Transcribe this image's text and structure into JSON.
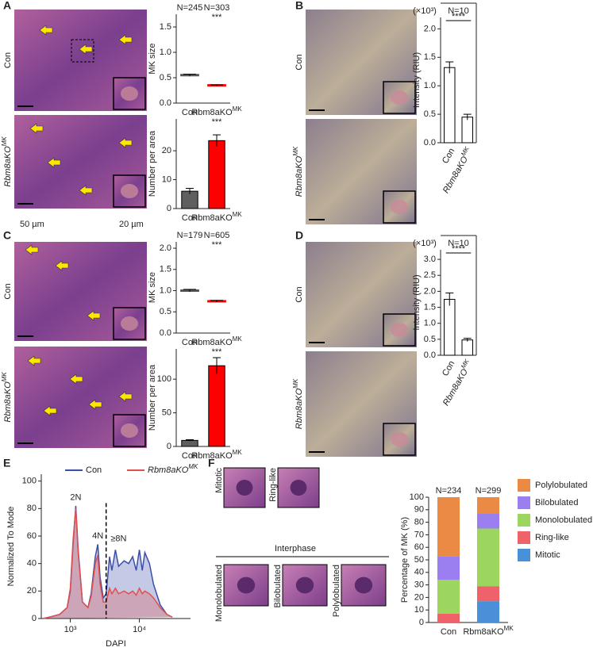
{
  "figure": {
    "panel_letters": [
      "A",
      "B",
      "C",
      "D",
      "E",
      "F"
    ],
    "row_labels": [
      "Con",
      "Rbm8aKO"
    ],
    "row_label_sup": "MK",
    "scale_labels": [
      "50 µm",
      "20 µm"
    ],
    "f_images": {
      "top": [
        "Mitotic",
        "Ring-like"
      ],
      "group": "Interphase",
      "bottom": [
        "Monolobulated",
        "Bilobulated",
        "Polylobulated"
      ]
    }
  },
  "chart_data": [
    {
      "type": "dot",
      "y_label": "MK size",
      "categories": [
        "Con",
        "Rbm8aKO"
      ],
      "category_superscripts": {
        "1": "MK"
      },
      "values": [
        0.55,
        0.35
      ],
      "errors": [
        0.02,
        0.01
      ],
      "colors": [
        "#555555",
        "#ff0000"
      ],
      "top_labels": [
        "N=245",
        "N=303"
      ],
      "significance": "***",
      "ylim": [
        0,
        1.75
      ],
      "yticks": [
        {
          "value": 0,
          "label": "0.0"
        },
        {
          "value": 0.5,
          "label": "0.5"
        },
        {
          "value": 1,
          "label": "1.0"
        },
        {
          "value": 1.5,
          "label": "1.5"
        }
      ]
    },
    {
      "type": "bar",
      "y_label": "Number per area",
      "categories": [
        "Con",
        "Rbm8aKO"
      ],
      "category_superscripts": {
        "1": "MK"
      },
      "values": [
        6,
        23.5
      ],
      "errors": [
        1,
        2
      ],
      "colors": [
        "#5f5f5f",
        "#ff0000"
      ],
      "significance": "***",
      "ylim": [
        0,
        31
      ],
      "yticks": [
        0,
        10,
        20
      ]
    },
    {
      "type": "bar",
      "y_label": "Intensity (RIU)",
      "unit_note": "(×10³)",
      "top_label": "N=10",
      "significance": "****",
      "bracket": true,
      "categories": [
        "Con",
        "Rbm8aKO"
      ],
      "category_superscripts": {
        "1": "MK"
      },
      "rotate_categories": true,
      "values": [
        1.32,
        0.45
      ],
      "errors": [
        0.1,
        0.05
      ],
      "colors": [
        "#ffffff",
        "#ffffff"
      ],
      "ylim": [
        0,
        2.2
      ],
      "yticks": [
        {
          "value": 0,
          "label": "0.0"
        },
        {
          "value": 0.5,
          "label": "0.5"
        },
        {
          "value": 1,
          "label": "1.0"
        },
        {
          "value": 1.5,
          "label": "1.5"
        },
        {
          "value": 2,
          "label": "2.0"
        }
      ]
    },
    {
      "type": "dot",
      "y_label": "MK size",
      "categories": [
        "Con",
        "Rbm8aKO"
      ],
      "category_superscripts": {
        "1": "MK"
      },
      "values": [
        1.0,
        0.75
      ],
      "errors": [
        0.03,
        0.02
      ],
      "colors": [
        "#555555",
        "#ff0000"
      ],
      "top_labels": [
        "N=179",
        "N=605"
      ],
      "significance": "***",
      "ylim": [
        0,
        2.15
      ],
      "yticks": [
        {
          "value": 0,
          "label": "0.0"
        },
        {
          "value": 0.5,
          "label": "0.5"
        },
        {
          "value": 1,
          "label": "1.0"
        },
        {
          "value": 1.5,
          "label": "1.5"
        },
        {
          "value": 2,
          "label": "2.0"
        }
      ]
    },
    {
      "type": "bar",
      "y_label": "Number per area",
      "categories": [
        "Con",
        "Rbm8aKO"
      ],
      "category_superscripts": {
        "1": "MK"
      },
      "values": [
        9,
        120
      ],
      "errors": [
        1,
        12
      ],
      "colors": [
        "#5f5f5f",
        "#ff0000"
      ],
      "significance": "***",
      "ylim": [
        0,
        145
      ],
      "yticks": [
        0,
        50,
        100
      ]
    },
    {
      "type": "bar",
      "y_label": "Intensity (RIU)",
      "unit_note": "(×10³)",
      "top_label": "N=10",
      "significance": "****",
      "bracket": true,
      "categories": [
        "Con",
        "Rbm8aKO"
      ],
      "category_superscripts": {
        "1": "MK"
      },
      "rotate_categories": true,
      "values": [
        1.75,
        0.48
      ],
      "errors": [
        0.2,
        0.05
      ],
      "colors": [
        "#ffffff",
        "#ffffff"
      ],
      "ylim": [
        0,
        3.3
      ],
      "yticks": [
        {
          "value": 0,
          "label": "0.0"
        },
        {
          "value": 0.5,
          "label": "0.5"
        },
        {
          "value": 1,
          "label": "1.0"
        },
        {
          "value": 1.5,
          "label": "1.5"
        },
        {
          "value": 2,
          "label": "2.0"
        },
        {
          "value": 2.5,
          "label": "2.5"
        },
        {
          "value": 3,
          "label": "3.0"
        }
      ]
    },
    {
      "type": "line",
      "x_label": "DAPI",
      "y_label": "Normalized To Mode",
      "log_x": true,
      "x": [
        400,
        500,
        700,
        900,
        1000,
        1100,
        1200,
        1300,
        1500,
        1800,
        2000,
        2300,
        2500,
        2700,
        3000,
        3300,
        3700,
        4000,
        4500,
        5000,
        6000,
        7000,
        8000,
        9000,
        10000,
        11000,
        12000,
        14000,
        16000,
        20000,
        25000,
        30000
      ],
      "series": [
        {
          "name": "Con",
          "color": "#3a4fa8",
          "values": [
            0,
            1,
            3,
            8,
            20,
            55,
            82,
            50,
            12,
            8,
            18,
            45,
            54,
            30,
            15,
            18,
            45,
            35,
            50,
            38,
            42,
            40,
            45,
            35,
            50,
            35,
            48,
            40,
            25,
            10,
            3,
            1
          ]
        },
        {
          "name": "Rbm8aKO",
          "sup": "MK",
          "color": "#e0504f",
          "values": [
            0,
            1,
            3,
            8,
            22,
            58,
            80,
            48,
            12,
            8,
            16,
            40,
            46,
            25,
            12,
            12,
            22,
            18,
            22,
            18,
            20,
            18,
            20,
            17,
            22,
            18,
            20,
            18,
            15,
            8,
            3,
            1
          ]
        }
      ],
      "annotations": [
        {
          "text": "2N",
          "x": 1200,
          "y": 88
        },
        {
          "text": "4N",
          "x": 2500,
          "y": 60
        },
        {
          "text": "≥8N",
          "x": 5000,
          "y": 58
        }
      ],
      "divider_x": 3300,
      "xlim": [
        380,
        55000
      ],
      "xticks": [
        {
          "value": 1000,
          "label": "10³"
        },
        {
          "value": 10000,
          "label": "10⁴"
        }
      ],
      "ylim": [
        0,
        105
      ],
      "yticks": [
        0,
        20,
        40,
        60,
        80,
        100
      ]
    },
    {
      "type": "stacked_bar",
      "y_label": "Percentage of MK (%)",
      "categories": [
        "Con",
        "Rbm8aKO"
      ],
      "category_superscripts": {
        "1": "MK"
      },
      "top_labels": [
        "N=234",
        "N=299"
      ],
      "series": [
        {
          "name": "Mitotic",
          "color": "#4a90d9",
          "values": [
            0,
            17
          ]
        },
        {
          "name": "Ring-like",
          "color": "#f0626a",
          "values": [
            7,
            12
          ]
        },
        {
          "name": "Monolobulated",
          "color": "#9cd65f",
          "values": [
            27,
            46
          ]
        },
        {
          "name": "Bilobulated",
          "color": "#9b7ef0",
          "values": [
            19,
            12
          ]
        },
        {
          "name": "Polylobulated",
          "color": "#ea8a45",
          "values": [
            47,
            13
          ]
        }
      ],
      "ylim": [
        0,
        100
      ],
      "yticks": [
        0,
        10,
        20,
        30,
        40,
        50,
        60,
        70,
        80,
        90,
        100
      ]
    }
  ]
}
